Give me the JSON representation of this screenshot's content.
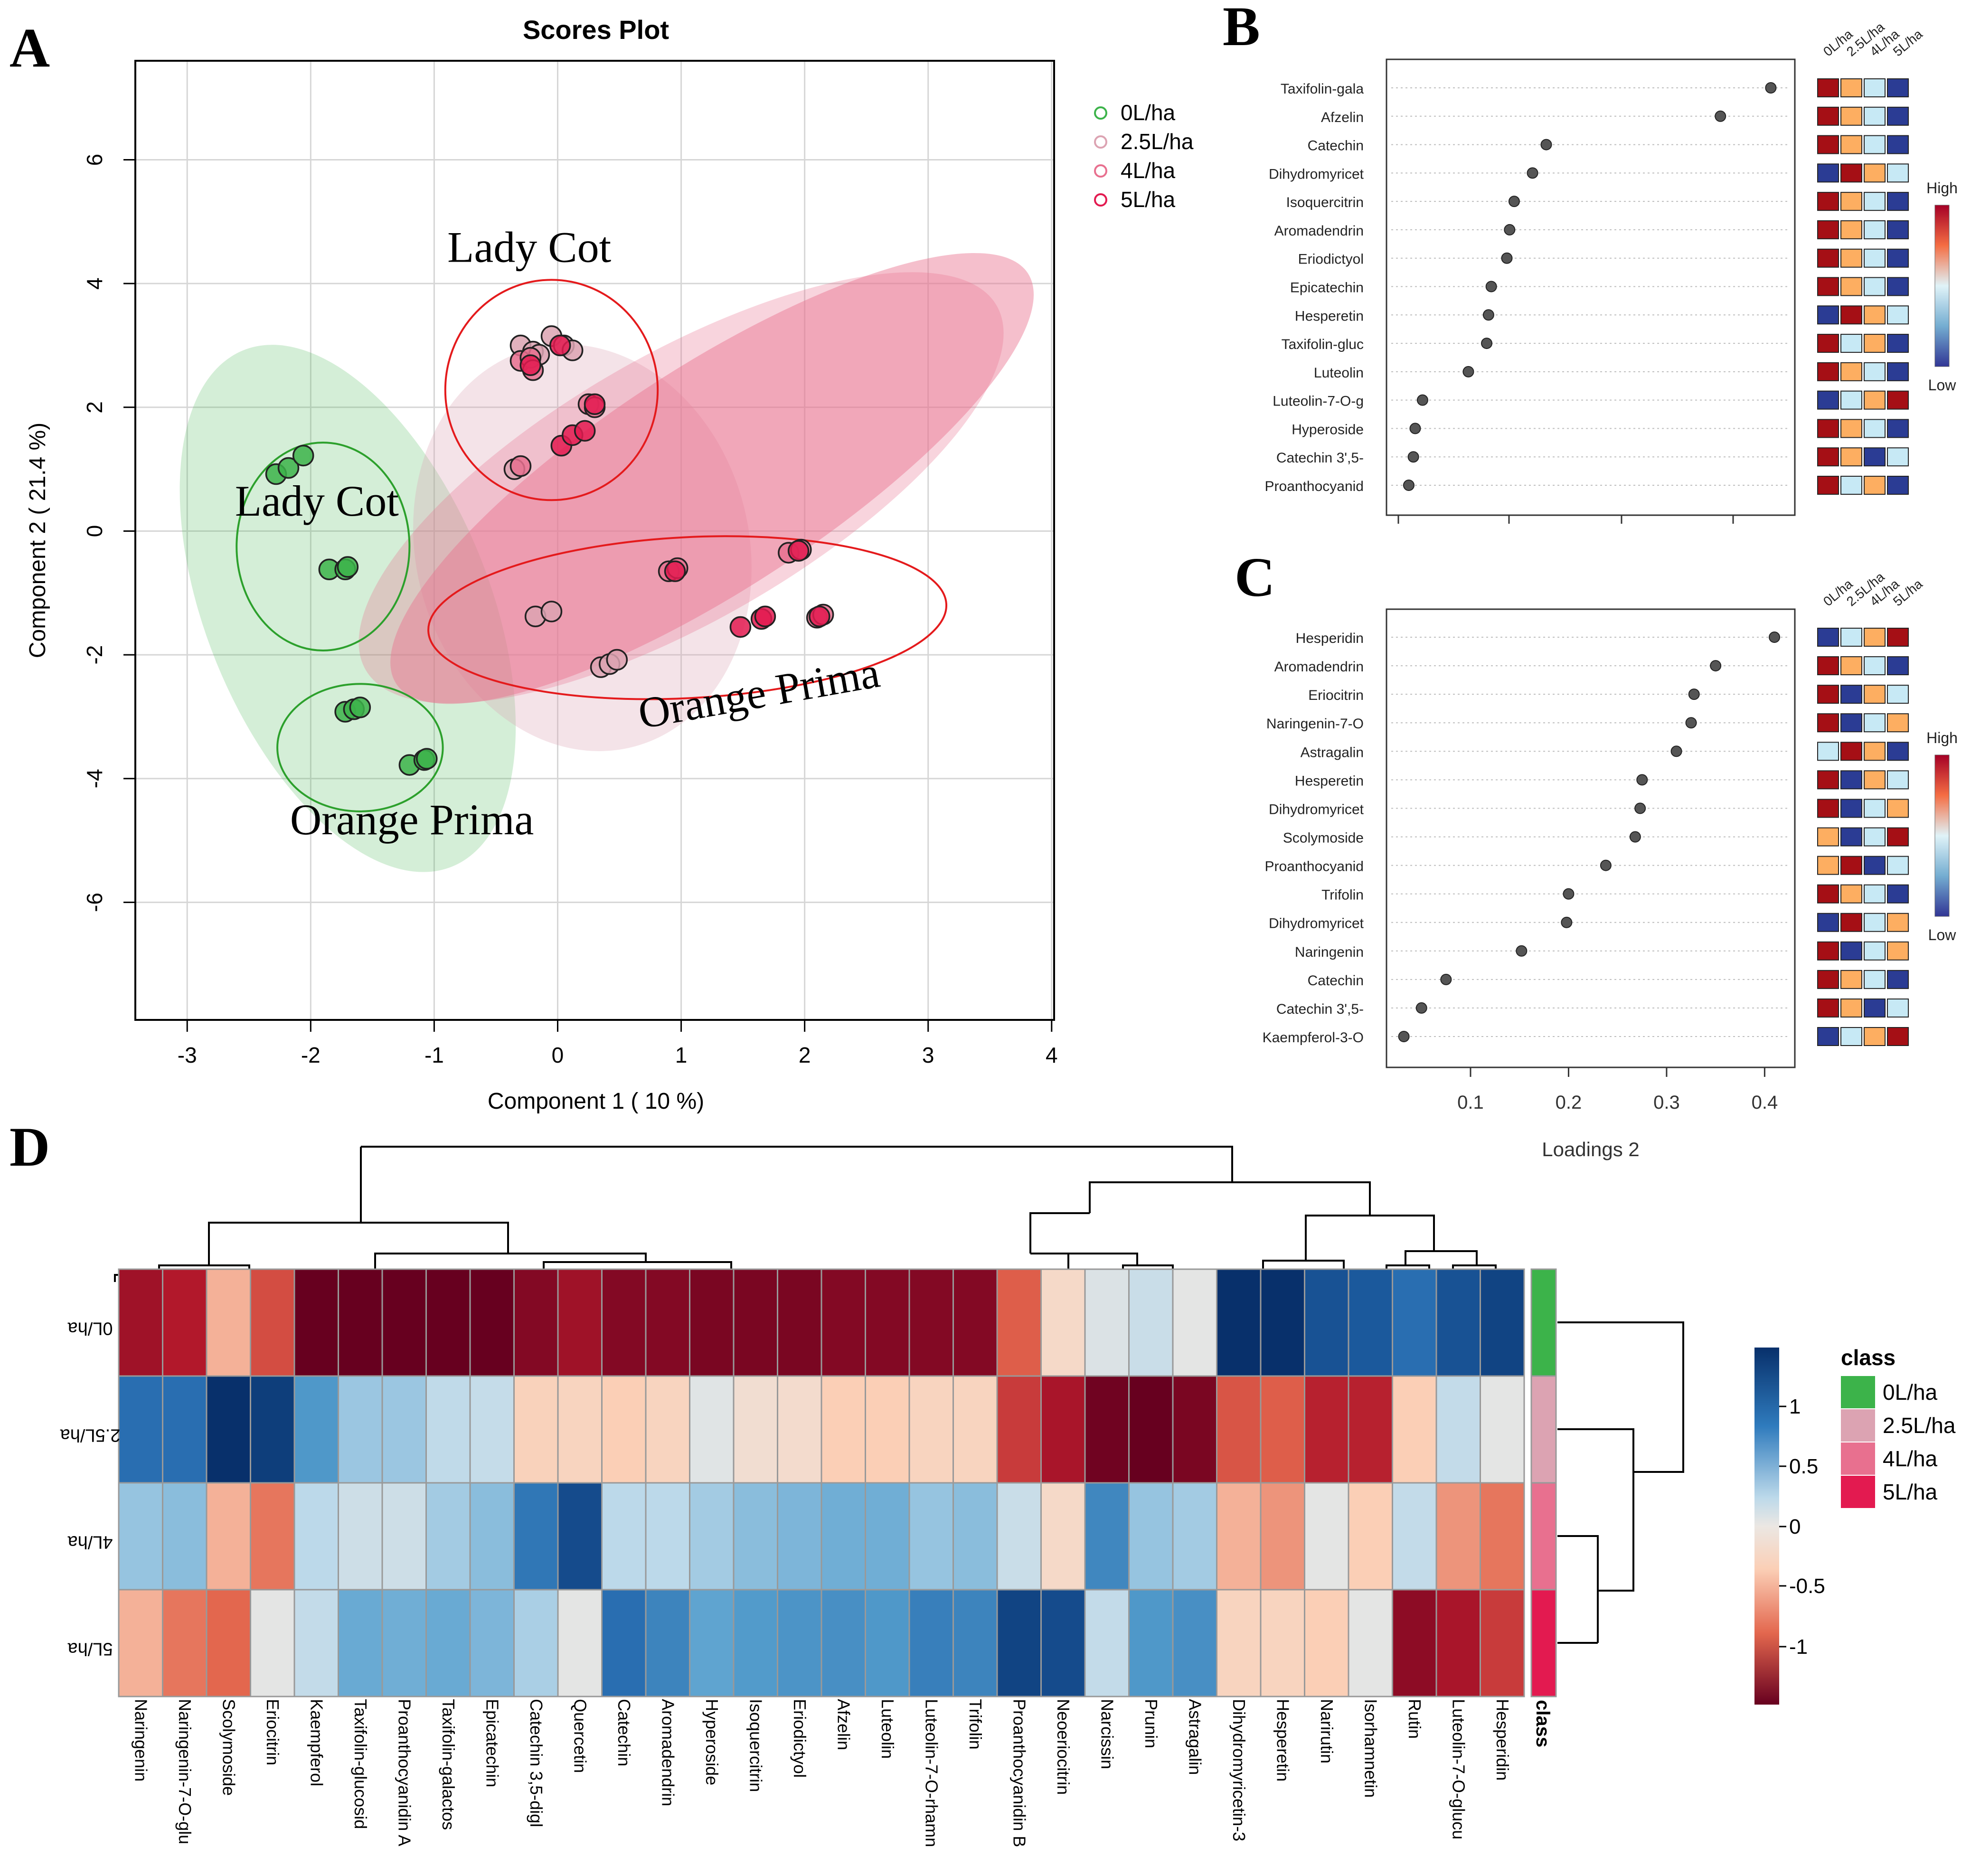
{
  "panel_labels": {
    "a": "A",
    "b": "B",
    "c": "C",
    "d": "D"
  },
  "colors": {
    "g0": "#3cb34a",
    "g25": "#dca3b2",
    "g4": "#e8708f",
    "g5": "#e31a50",
    "green_circle": "#2ca02c",
    "red_circle": "#e41a1c",
    "hi": "#a50f15",
    "mid": "#f7f7f7",
    "lo": "#2b3c94"
  },
  "chart_data": [
    {
      "id": "A",
      "type": "scatter",
      "title": "Scores Plot",
      "xlabel": "Component 1 ( 10 %)",
      "ylabel": "Component 2 ( 21.4 %)",
      "xlim": [
        -3.42,
        4.02
      ],
      "ylim": [
        -7.9,
        7.6
      ],
      "xticks": [
        "-3",
        "-2",
        "-1",
        "0",
        "1",
        "2",
        "3",
        "4"
      ],
      "yticks": [
        "6",
        "4",
        "2",
        "0",
        "-2",
        "-4",
        "-6"
      ],
      "legend": [
        {
          "label": "0L/ha",
          "color": "#3cb34a"
        },
        {
          "label": "2.5L/ha",
          "color": "#dca3b2"
        },
        {
          "label": "4L/ha",
          "color": "#e8708f"
        },
        {
          "label": "5L/ha",
          "color": "#e31a50"
        }
      ],
      "annotations": [
        {
          "text": "Lady Cot",
          "x": -1.95,
          "y": 0.25,
          "angle": 0
        },
        {
          "text": "Lady Cot",
          "x": -0.23,
          "y": 4.35,
          "angle": 0
        },
        {
          "text": "Orange Prima",
          "x": -1.18,
          "y": -4.9,
          "angle": 0
        },
        {
          "text": "Orange Prima",
          "x": 1.65,
          "y": -2.85,
          "angle": -10
        }
      ],
      "ellipses": [
        {
          "group": "0L/ha",
          "cx": -1.7,
          "cy": -1.25,
          "rx": 1.15,
          "ry": 4.5,
          "angle": -22,
          "color": "#3cb34a",
          "opacity": 0.22
        },
        {
          "group": "2.5L/ha",
          "cx": 0.2,
          "cy": -0.27,
          "rx": 1.35,
          "ry": 3.32,
          "angle": -14,
          "color": "#dca3b2",
          "opacity": 0.3
        },
        {
          "group": "4L/ha",
          "cx": 1.0,
          "cy": 0.7,
          "rx": 2.95,
          "ry": 2.15,
          "angle": -30,
          "color": "#e8708f",
          "opacity": 0.3
        },
        {
          "group": "5L/ha",
          "cx": 1.25,
          "cy": 0.85,
          "rx": 3.05,
          "ry": 1.8,
          "angle": -33,
          "color": "#e8708f",
          "opacity": 0.45
        }
      ],
      "circles": [
        {
          "cx": -1.9,
          "cy": -0.25,
          "rx": 0.7,
          "ry": 1.68,
          "angle": 0,
          "color": "#2ca02c"
        },
        {
          "cx": -1.6,
          "cy": -3.5,
          "rx": 0.67,
          "ry": 1.03,
          "angle": 0,
          "color": "#2ca02c"
        },
        {
          "cx": -0.05,
          "cy": 2.28,
          "rx": 0.86,
          "ry": 1.78,
          "angle": 0,
          "color": "#e41a1c"
        },
        {
          "cx": 1.05,
          "cy": -1.4,
          "rx": 2.1,
          "ry": 1.3,
          "angle": -3,
          "color": "#e41a1c"
        }
      ],
      "series": [
        {
          "name": "0L/ha",
          "color": "#3cb34a",
          "points": [
            [
              -2.28,
              0.92
            ],
            [
              -2.18,
              1.02
            ],
            [
              -2.06,
              1.22
            ],
            [
              -1.85,
              -0.62
            ],
            [
              -1.72,
              -0.62
            ],
            [
              -1.7,
              -0.58
            ],
            [
              -1.72,
              -2.92
            ],
            [
              -1.65,
              -2.88
            ],
            [
              -1.6,
              -2.85
            ],
            [
              -1.2,
              -3.78
            ],
            [
              -1.08,
              -3.7
            ],
            [
              -1.06,
              -3.68
            ]
          ]
        },
        {
          "name": "2.5L/ha",
          "color": "#dca3b2",
          "points": [
            [
              -0.3,
              3.0
            ],
            [
              -0.2,
              2.9
            ],
            [
              -0.15,
              2.85
            ],
            [
              -0.05,
              3.15
            ],
            [
              0.05,
              3.0
            ],
            [
              0.12,
              2.92
            ],
            [
              -0.18,
              -1.38
            ],
            [
              -0.05,
              -1.3
            ],
            [
              0.35,
              -2.2
            ],
            [
              0.42,
              -2.15
            ],
            [
              0.48,
              -2.08
            ],
            [
              -0.35,
              1.0
            ]
          ]
        },
        {
          "name": "4L/ha",
          "color": "#e8708f",
          "points": [
            [
              -0.3,
              2.75
            ],
            [
              -0.22,
              2.8
            ],
            [
              -0.2,
              2.6
            ],
            [
              0.25,
              2.05
            ],
            [
              0.3,
              2.0
            ],
            [
              -0.3,
              1.05
            ],
            [
              0.9,
              -0.65
            ],
            [
              0.97,
              -0.6
            ],
            [
              1.87,
              -0.35
            ],
            [
              1.97,
              -0.3
            ],
            [
              2.1,
              -1.4
            ],
            [
              2.15,
              -1.35
            ]
          ]
        },
        {
          "name": "5L/ha",
          "color": "#e31a50",
          "points": [
            [
              0.03,
              1.38
            ],
            [
              0.12,
              1.55
            ],
            [
              0.22,
              1.62
            ],
            [
              -0.22,
              2.68
            ],
            [
              0.02,
              3.0
            ],
            [
              0.3,
              2.05
            ],
            [
              1.48,
              -1.55
            ],
            [
              1.65,
              -1.42
            ],
            [
              1.68,
              -1.38
            ],
            [
              2.12,
              -1.38
            ],
            [
              0.95,
              -0.65
            ],
            [
              1.95,
              -0.32
            ]
          ]
        }
      ]
    },
    {
      "id": "B",
      "type": "scatter",
      "xlabel": "",
      "xlim": [
        -0.01,
        0.42
      ],
      "groups_header": [
        "0L/ha",
        "2.5L/ha",
        "4L/ha",
        "5L/ha"
      ],
      "colorbar": {
        "high": "High",
        "low": "Low"
      },
      "features": [
        {
          "name": "Taxifolin-gala",
          "loading": 0.4,
          "tiles": [
            "H",
            "O",
            "L",
            "B"
          ]
        },
        {
          "name": "Afzelin",
          "loading": 0.345,
          "tiles": [
            "H",
            "O",
            "L",
            "B"
          ]
        },
        {
          "name": "Catechin",
          "loading": 0.155,
          "tiles": [
            "H",
            "O",
            "L",
            "B"
          ]
        },
        {
          "name": "Dihydromyricet",
          "loading": 0.14,
          "tiles": [
            "B",
            "H",
            "O",
            "L"
          ]
        },
        {
          "name": "Isoquercitrin",
          "loading": 0.12,
          "tiles": [
            "H",
            "O",
            "L",
            "B"
          ]
        },
        {
          "name": "Aromadendrin",
          "loading": 0.115,
          "tiles": [
            "H",
            "O",
            "L",
            "B"
          ]
        },
        {
          "name": "Eriodictyol",
          "loading": 0.112,
          "tiles": [
            "H",
            "O",
            "L",
            "B"
          ]
        },
        {
          "name": "Epicatechin",
          "loading": 0.095,
          "tiles": [
            "H",
            "O",
            "L",
            "B"
          ]
        },
        {
          "name": "Hesperetin",
          "loading": 0.092,
          "tiles": [
            "B",
            "H",
            "O",
            "L"
          ]
        },
        {
          "name": "Taxifolin-gluc",
          "loading": 0.09,
          "tiles": [
            "H",
            "L",
            "O",
            "B"
          ]
        },
        {
          "name": "Luteolin",
          "loading": 0.07,
          "tiles": [
            "H",
            "O",
            "L",
            "B"
          ]
        },
        {
          "name": "Luteolin-7-O-g",
          "loading": 0.02,
          "tiles": [
            "B",
            "L",
            "O",
            "H"
          ]
        },
        {
          "name": "Hyperoside",
          "loading": 0.012,
          "tiles": [
            "H",
            "O",
            "L",
            "B"
          ]
        },
        {
          "name": "Catechin 3',5-",
          "loading": 0.01,
          "tiles": [
            "H",
            "O",
            "B",
            "L"
          ]
        },
        {
          "name": "Proanthocyanid",
          "loading": 0.005,
          "tiles": [
            "H",
            "L",
            "O",
            "B"
          ]
        }
      ]
    },
    {
      "id": "C",
      "type": "scatter",
      "xlabel": "Loadings 2",
      "xlim": [
        0.023,
        0.425
      ],
      "xticks": [
        "0.1",
        "0.2",
        "0.3",
        "0.4"
      ],
      "groups_header": [
        "0L/ha",
        "2.5L/ha",
        "4L/ha",
        "5L/ha"
      ],
      "colorbar": {
        "high": "High",
        "low": "Low"
      },
      "features": [
        {
          "name": "Hesperidin",
          "loading": 0.41,
          "tiles": [
            "B",
            "L",
            "O",
            "H"
          ]
        },
        {
          "name": "Aromadendrin",
          "loading": 0.35,
          "tiles": [
            "H",
            "O",
            "L",
            "B"
          ]
        },
        {
          "name": "Eriocitrin",
          "loading": 0.328,
          "tiles": [
            "H",
            "B",
            "O",
            "L"
          ]
        },
        {
          "name": "Naringenin-7-O",
          "loading": 0.325,
          "tiles": [
            "H",
            "B",
            "L",
            "O"
          ]
        },
        {
          "name": "Astragalin",
          "loading": 0.31,
          "tiles": [
            "L",
            "H",
            "O",
            "B"
          ]
        },
        {
          "name": "Hesperetin",
          "loading": 0.275,
          "tiles": [
            "H",
            "B",
            "O",
            "L"
          ]
        },
        {
          "name": "Dihydromyricet",
          "loading": 0.273,
          "tiles": [
            "H",
            "B",
            "L",
            "O"
          ]
        },
        {
          "name": "Scolymoside",
          "loading": 0.268,
          "tiles": [
            "O",
            "B",
            "L",
            "H"
          ]
        },
        {
          "name": "Proanthocyanid",
          "loading": 0.238,
          "tiles": [
            "O",
            "H",
            "B",
            "L"
          ]
        },
        {
          "name": "Trifolin",
          "loading": 0.2,
          "tiles": [
            "H",
            "O",
            "L",
            "B"
          ]
        },
        {
          "name": "Dihydromyricet",
          "loading": 0.198,
          "tiles": [
            "B",
            "H",
            "L",
            "O"
          ]
        },
        {
          "name": "Naringenin",
          "loading": 0.152,
          "tiles": [
            "H",
            "B",
            "L",
            "O"
          ]
        },
        {
          "name": "Catechin",
          "loading": 0.075,
          "tiles": [
            "H",
            "O",
            "L",
            "B"
          ]
        },
        {
          "name": "Catechin 3',5-",
          "loading": 0.05,
          "tiles": [
            "H",
            "O",
            "B",
            "L"
          ]
        },
        {
          "name": "Kaempferol-3-O",
          "loading": 0.032,
          "tiles": [
            "B",
            "L",
            "O",
            "H"
          ]
        }
      ]
    },
    {
      "id": "D",
      "type": "heatmap",
      "rows": [
        "0L/ha",
        "2.5L/ha",
        "4L/ha",
        "5L/ha"
      ],
      "row_colors": [
        "#3cb34a",
        "#dca3b2",
        "#e8708f",
        "#e31a50"
      ],
      "columns": [
        "Naringenin",
        "Naringenin-7-O-glu",
        "Scolymoside",
        "Eriocitrin",
        "Kaempferol",
        "Taxifolin-glucosid",
        "Proanthocyanidin A",
        "Taxifolin-galactos",
        "Epicatechin",
        "Catechin 3,5-digl",
        "Quercetin",
        "Catechin",
        "Aromadendrin",
        "Hyperoside",
        "Isoquercitrin",
        "Eriodictyol",
        "Afzelin",
        "Luteolin",
        "Luteolin-7-O-rhamn",
        "Trifolin",
        "Proanthocyanidin B",
        "Neoeriocitrin",
        "Narcissin",
        "Prunin",
        "Astragalin",
        "Dihydromyricetin-3",
        "Hesperetin",
        "Narirutin",
        "Isorhamnetin",
        "Rutin",
        "Luteolin-7-O-glucu",
        "Hesperidin"
      ],
      "values": [
        [
          -1.15,
          -1.05,
          -0.35,
          -0.75,
          -1.45,
          -1.45,
          -1.45,
          -1.45,
          -1.45,
          -1.3,
          -1.15,
          -1.3,
          -1.3,
          -1.35,
          -1.35,
          -1.35,
          -1.3,
          -1.3,
          -1.3,
          -1.3,
          -0.65,
          -0.15,
          0.12,
          0.25,
          0.05,
          1.5,
          1.5,
          1.25,
          1.2,
          1.05,
          1.25,
          1.35
        ],
        [
          1.05,
          1.05,
          1.5,
          1.4,
          0.8,
          0.48,
          0.48,
          0.32,
          0.28,
          -0.22,
          -0.2,
          -0.25,
          -0.2,
          0.08,
          -0.1,
          -0.12,
          -0.25,
          -0.25,
          -0.2,
          -0.2,
          -0.85,
          -1.1,
          -1.4,
          -1.45,
          -1.35,
          -0.7,
          -0.65,
          -1.0,
          -1.0,
          -0.25,
          0.3,
          0.05
        ],
        [
          0.5,
          0.55,
          -0.35,
          -0.55,
          0.35,
          0.22,
          0.22,
          0.45,
          0.55,
          1.0,
          1.3,
          0.35,
          0.35,
          0.45,
          0.55,
          0.6,
          0.65,
          0.65,
          0.5,
          0.55,
          0.25,
          -0.15,
          0.9,
          0.5,
          0.45,
          -0.35,
          -0.45,
          0.05,
          -0.25,
          0.3,
          -0.45,
          -0.55
        ],
        [
          -0.35,
          -0.55,
          -0.6,
          0.05,
          0.3,
          0.68,
          0.65,
          0.68,
          0.6,
          0.42,
          0.05,
          1.05,
          0.92,
          0.72,
          0.78,
          0.82,
          0.85,
          0.8,
          0.95,
          0.92,
          1.35,
          1.3,
          0.3,
          0.8,
          0.85,
          -0.2,
          -0.2,
          -0.25,
          0.05,
          -1.25,
          -1.1,
          -0.85
        ]
      ],
      "legend_ticks": [
        "1",
        "0.5",
        "0",
        "-0.5",
        "-1"
      ],
      "class_title": "class",
      "class_axis_label": "class",
      "class_legend": [
        "0L/ha",
        "2.5L/ha",
        "4L/ha",
        "5L/ha"
      ]
    }
  ]
}
